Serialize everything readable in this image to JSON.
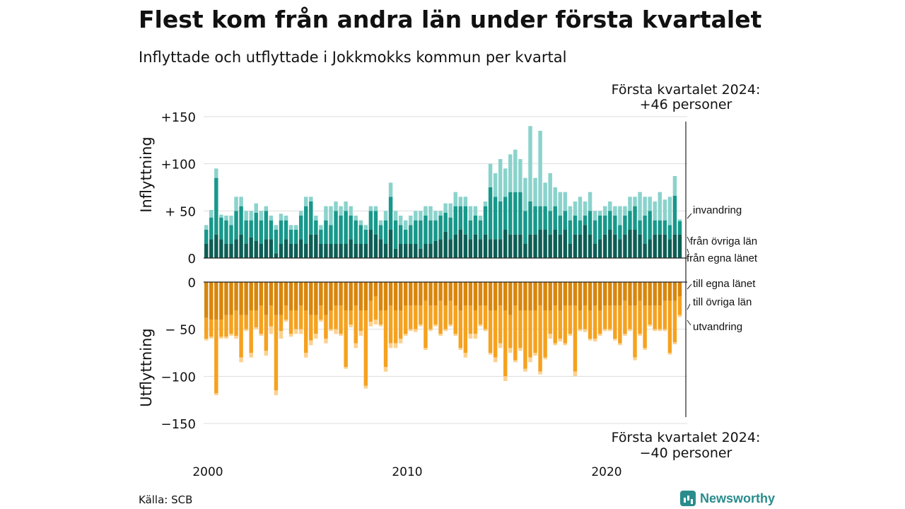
{
  "title": "Flest kom från andra län under första kvartalet",
  "subtitle": "Inflyttade och utflyttade i Jokkmokks kommun per kvartal",
  "source": "Källa: SCB",
  "logo_text": "Newsworthy",
  "annotation_top": [
    "Första kvartalet 2024:",
    "+46 personer"
  ],
  "annotation_bottom": [
    "Första kvartalet 2024:",
    "−40 personer"
  ],
  "colors": {
    "in_own": "#0d5e55",
    "in_other": "#17988a",
    "in_foreign": "#8ad3cc",
    "out_own": "#d9860c",
    "out_other": "#f5a21f",
    "out_foreign": "#fcd18f"
  },
  "chart_data": [
    {
      "type": "bar",
      "stacked": true,
      "ylabel": "Inflyttning",
      "ylim": [
        0,
        150
      ],
      "yticks": [
        {
          "value": 0,
          "label": "0"
        },
        {
          "value": 50,
          "label": "+ 50"
        },
        {
          "value": 100,
          "label": "+100"
        },
        {
          "value": 150,
          "label": "+150"
        }
      ],
      "grid": true,
      "x_start": 2000.0,
      "x_step": 0.25,
      "xticks": [
        2000,
        2010,
        2020
      ],
      "series": [
        {
          "name": "från egna länet",
          "values": [
            15,
            20,
            25,
            20,
            15,
            15,
            20,
            25,
            15,
            22,
            18,
            15,
            20,
            20,
            5,
            15,
            20,
            15,
            15,
            20,
            15,
            25,
            25,
            15,
            15,
            15,
            15,
            15,
            15,
            20,
            15,
            15,
            15,
            30,
            25,
            20,
            15,
            30,
            10,
            15,
            15,
            15,
            15,
            10,
            15,
            15,
            18,
            20,
            28,
            20,
            25,
            30,
            25,
            20,
            25,
            20,
            25,
            20,
            20,
            20,
            30,
            25,
            25,
            25,
            15,
            25,
            25,
            30,
            30,
            25,
            30,
            25,
            30,
            15,
            25,
            25,
            35,
            25,
            15,
            20,
            25,
            30,
            25,
            20,
            25,
            30,
            30,
            25,
            15,
            20,
            25,
            25,
            25,
            20,
            25,
            25
          ]
        },
        {
          "name": "från övriga län",
          "values": [
            15,
            23,
            60,
            23,
            25,
            20,
            30,
            30,
            25,
            18,
            30,
            25,
            30,
            20,
            25,
            25,
            20,
            15,
            15,
            25,
            40,
            35,
            15,
            15,
            25,
            20,
            35,
            30,
            35,
            25,
            25,
            20,
            15,
            20,
            25,
            15,
            25,
            35,
            30,
            20,
            15,
            20,
            25,
            30,
            30,
            25,
            22,
            25,
            20,
            23,
            30,
            25,
            30,
            20,
            20,
            20,
            30,
            55,
            45,
            40,
            35,
            45,
            45,
            45,
            35,
            35,
            30,
            25,
            25,
            25,
            25,
            20,
            20,
            25,
            20,
            15,
            10,
            25,
            25,
            25,
            20,
            20,
            20,
            15,
            20,
            20,
            25,
            15,
            30,
            30,
            15,
            15,
            15,
            15,
            41,
            14
          ]
        },
        {
          "name": "invandring",
          "values": [
            5,
            8,
            10,
            3,
            5,
            10,
            15,
            10,
            10,
            10,
            10,
            10,
            5,
            5,
            5,
            7,
            5,
            5,
            5,
            5,
            10,
            5,
            5,
            5,
            15,
            20,
            10,
            10,
            10,
            10,
            5,
            5,
            5,
            5,
            5,
            5,
            10,
            15,
            10,
            10,
            10,
            10,
            10,
            10,
            10,
            15,
            10,
            5,
            10,
            15,
            15,
            10,
            10,
            15,
            10,
            5,
            5,
            25,
            25,
            45,
            30,
            40,
            45,
            35,
            35,
            80,
            30,
            80,
            25,
            40,
            20,
            25,
            20,
            15,
            15,
            25,
            15,
            20,
            10,
            5,
            10,
            10,
            10,
            20,
            10,
            15,
            10,
            30,
            20,
            15,
            20,
            30,
            22,
            30,
            21,
            2
          ]
        }
      ]
    },
    {
      "type": "bar",
      "stacked": true,
      "ylabel": "Utflyttning",
      "ylim": [
        -150,
        0
      ],
      "yticks": [
        {
          "value": 0,
          "label": "0"
        },
        {
          "value": -50,
          "label": "− 50"
        },
        {
          "value": -100,
          "label": "−100"
        },
        {
          "value": -150,
          "label": "−150"
        }
      ],
      "grid": true,
      "x_start": 2000.0,
      "x_step": 0.25,
      "xticks": [
        2000,
        2010,
        2020
      ],
      "series": [
        {
          "name": "till egna länet",
          "values": [
            -38,
            -40,
            -40,
            -40,
            -35,
            -35,
            -30,
            -35,
            -35,
            -30,
            -30,
            -25,
            -35,
            -25,
            -35,
            -35,
            -25,
            -30,
            -30,
            -25,
            -30,
            -35,
            -35,
            -25,
            -35,
            -30,
            -25,
            -25,
            -30,
            -30,
            -25,
            -30,
            -30,
            -20,
            -15,
            -30,
            -30,
            -25,
            -30,
            -30,
            -25,
            -25,
            -25,
            -25,
            -20,
            -25,
            -25,
            -20,
            -25,
            -20,
            -25,
            -30,
            -25,
            -25,
            -30,
            -25,
            -25,
            -30,
            -30,
            -25,
            -30,
            -35,
            -25,
            -30,
            -30,
            -30,
            -30,
            -25,
            -30,
            -30,
            -25,
            -30,
            -25,
            -25,
            -25,
            -30,
            -25,
            -30,
            -25,
            -30,
            -25,
            -25,
            -25,
            -25,
            -20,
            -25,
            -25,
            -20,
            -25,
            -25,
            -25,
            -25,
            -20,
            -20,
            -20,
            -15
          ]
        },
        {
          "name": "till övriga län",
          "values": [
            -22,
            -18,
            -78,
            -18,
            -23,
            -20,
            -27,
            -45,
            -15,
            -45,
            -18,
            -30,
            -38,
            -22,
            -80,
            -17,
            -15,
            -25,
            -20,
            -25,
            -45,
            -27,
            -20,
            -15,
            -25,
            -20,
            -25,
            -30,
            -60,
            -15,
            -40,
            -22,
            -80,
            -22,
            -25,
            -15,
            -60,
            -40,
            -35,
            -30,
            -30,
            -25,
            -25,
            -20,
            -50,
            -25,
            -20,
            -35,
            -25,
            -25,
            -30,
            -40,
            -50,
            -30,
            -25,
            -20,
            -25,
            -45,
            -50,
            -40,
            -70,
            -35,
            -58,
            -40,
            -62,
            -50,
            -45,
            -70,
            -50,
            -25,
            -40,
            -30,
            -40,
            -30,
            -70,
            -20,
            -25,
            -30,
            -35,
            -25,
            -25,
            -25,
            -35,
            -40,
            -35,
            -25,
            -55,
            -35,
            -45,
            -20,
            -25,
            -25,
            -30,
            -55,
            -44,
            -20
          ]
        },
        {
          "name": "utvandring",
          "values": [
            -2,
            -2,
            -2,
            -2,
            -2,
            -2,
            -3,
            -5,
            -2,
            -5,
            -2,
            -2,
            -5,
            -8,
            -5,
            -8,
            -2,
            -3,
            -5,
            -5,
            -5,
            -5,
            -5,
            -2,
            -5,
            -2,
            -5,
            -2,
            -2,
            -3,
            -5,
            -5,
            -3,
            -5,
            -5,
            -2,
            -5,
            -5,
            -5,
            -5,
            -2,
            -2,
            -3,
            -2,
            -2,
            -2,
            -2,
            -2,
            -2,
            -2,
            -2,
            -2,
            -5,
            -5,
            -5,
            -2,
            -2,
            -2,
            -5,
            -5,
            -5,
            -5,
            -2,
            -3,
            -3,
            -5,
            -3,
            -3,
            -2,
            -5,
            -2,
            -3,
            -2,
            -2,
            -5,
            -2,
            -3,
            -2,
            -3,
            -2,
            -2,
            -2,
            -2,
            -2,
            -2,
            -2,
            -3,
            -2,
            -2,
            -2,
            -2,
            -2,
            -2,
            -2,
            -2,
            -2
          ]
        }
      ]
    }
  ]
}
